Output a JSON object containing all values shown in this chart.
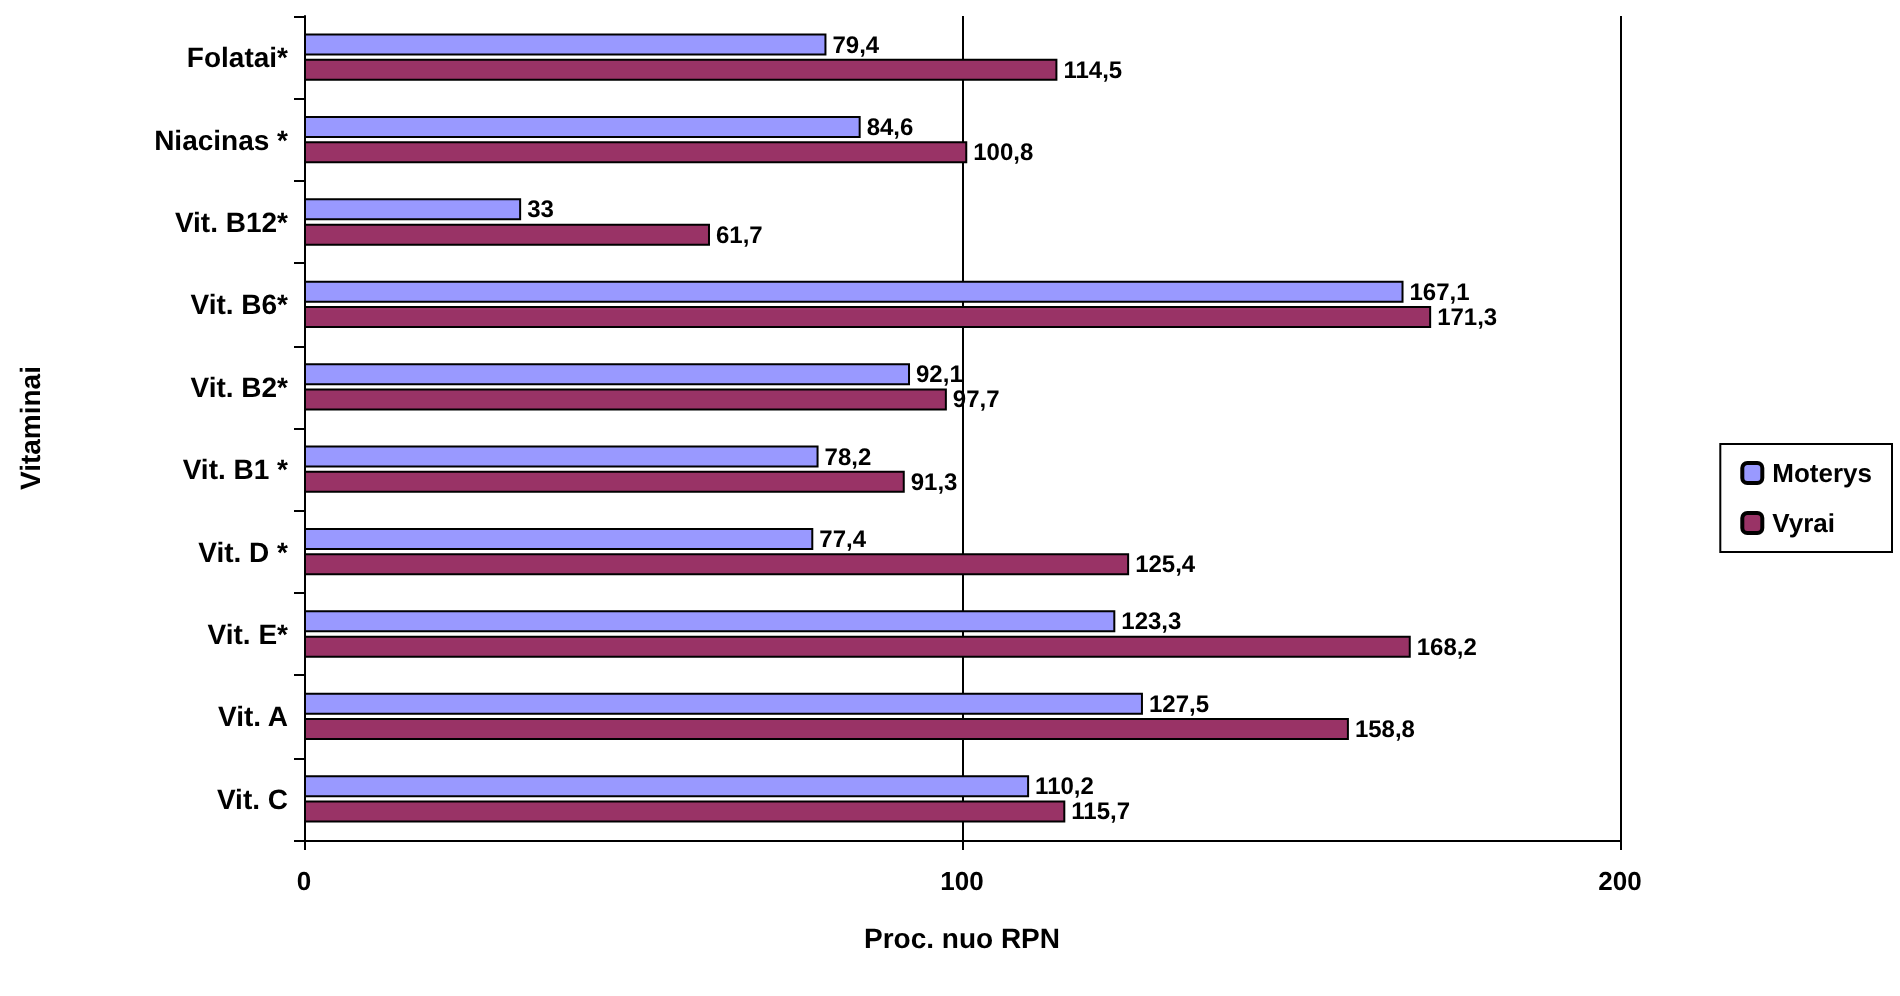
{
  "chart_data": {
    "type": "bar",
    "orientation": "horizontal",
    "xlabel": "Proc. nuo RPN",
    "ylabel": "Vitaminai",
    "categories": [
      "Folatai*",
      "Niacinas *",
      "Vit. B12*",
      "Vit. B6*",
      "Vit. B2*",
      "Vit. B1 *",
      "Vit. D *",
      "Vit. E*",
      "Vit. A",
      "Vit. C"
    ],
    "series": [
      {
        "name": "Moterys",
        "color": "#9999ff",
        "values": [
          79.4,
          84.6,
          33,
          167.1,
          92.1,
          78.2,
          77.4,
          123.3,
          127.5,
          110.2
        ],
        "value_labels": [
          "79,4",
          "84,6",
          "33",
          "167,1",
          "92,1",
          "78,2",
          "77,4",
          "123,3",
          "127,5",
          "110,2"
        ]
      },
      {
        "name": "Vyrai",
        "color": "#993366",
        "values": [
          114.5,
          100.8,
          61.7,
          171.3,
          97.7,
          91.3,
          125.4,
          168.2,
          158.8,
          115.7
        ],
        "value_labels": [
          "114,5",
          "100,8",
          "61,7",
          "171,3",
          "97,7",
          "91,3",
          "125,4",
          "168,2",
          "158,8",
          "115,7"
        ]
      }
    ],
    "xlim": [
      0,
      200
    ],
    "xticks": [
      0,
      100,
      200
    ],
    "grid": "x",
    "legend": "right"
  }
}
